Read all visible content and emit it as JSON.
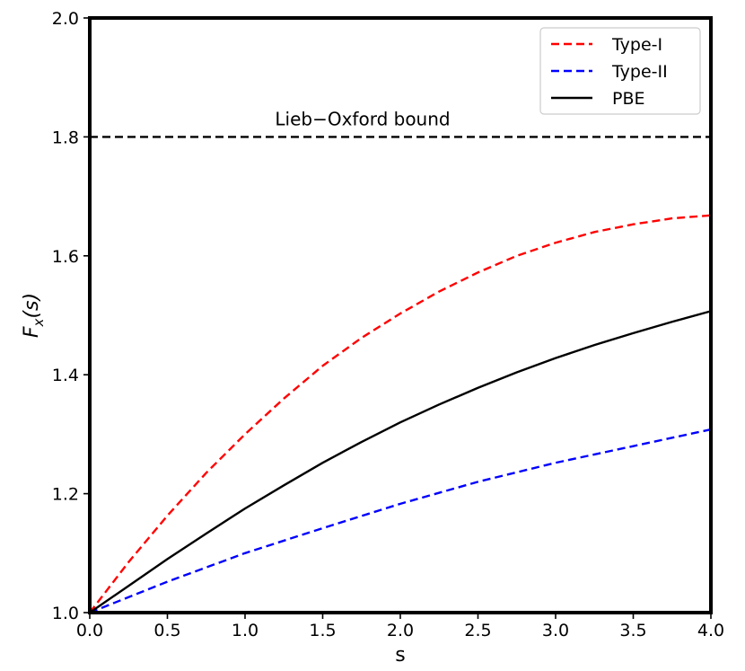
{
  "chart_data": {
    "type": "line",
    "title": "",
    "xlabel": "s",
    "ylabel": "F_x(s)",
    "xlim": [
      0.0,
      4.0
    ],
    "ylim": [
      1.0,
      2.0
    ],
    "xticks": [
      0.0,
      0.5,
      1.0,
      1.5,
      2.0,
      2.5,
      3.0,
      3.5,
      4.0
    ],
    "xtick_labels": [
      "0.0",
      "0.5",
      "1.0",
      "1.5",
      "2.0",
      "2.5",
      "3.0",
      "3.5",
      "4.0"
    ],
    "yticks": [
      1.0,
      1.2,
      1.4,
      1.6,
      1.8,
      2.0
    ],
    "ytick_labels": [
      "1.0",
      "1.2",
      "1.4",
      "1.6",
      "1.8",
      "2.0"
    ],
    "grid": false,
    "legend_position": "top-right",
    "series": [
      {
        "name": "Type-I",
        "color": "#ff0000",
        "style": "dashed",
        "x": [
          0.0,
          0.25,
          0.5,
          0.75,
          1.0,
          1.25,
          1.5,
          1.75,
          2.0,
          2.25,
          2.5,
          2.75,
          3.0,
          3.25,
          3.5,
          3.75,
          4.0
        ],
        "y": [
          1.0,
          1.085,
          1.163,
          1.235,
          1.3,
          1.36,
          1.415,
          1.462,
          1.503,
          1.54,
          1.572,
          1.6,
          1.622,
          1.64,
          1.653,
          1.663,
          1.668
        ]
      },
      {
        "name": "Type-II",
        "color": "#0000ff",
        "style": "dashed",
        "x": [
          0.0,
          0.5,
          1.0,
          1.5,
          2.0,
          2.5,
          3.0,
          3.5,
          4.0
        ],
        "y": [
          1.0,
          1.052,
          1.1,
          1.142,
          1.183,
          1.22,
          1.252,
          1.28,
          1.308
        ]
      },
      {
        "name": "PBE",
        "color": "#000000",
        "style": "solid",
        "x": [
          0.0,
          0.25,
          0.5,
          0.75,
          1.0,
          1.25,
          1.5,
          1.75,
          2.0,
          2.25,
          2.5,
          2.75,
          3.0,
          3.25,
          3.5,
          3.75,
          4.0
        ],
        "y": [
          1.0,
          1.045,
          1.09,
          1.133,
          1.175,
          1.214,
          1.252,
          1.287,
          1.32,
          1.35,
          1.378,
          1.404,
          1.428,
          1.45,
          1.47,
          1.489,
          1.507
        ]
      }
    ],
    "reference_lines": [
      {
        "label": "Lieb−Oxford bound",
        "y": 1.8,
        "color": "#000000",
        "style": "dashed"
      }
    ]
  }
}
